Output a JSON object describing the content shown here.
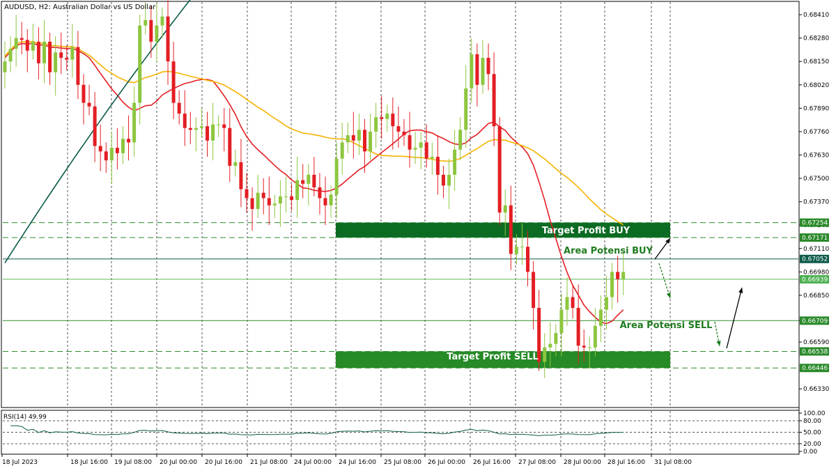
{
  "header": {
    "title": "AUDUSD, H2:  Australian Dollar vs US Dollar"
  },
  "colors": {
    "bull": "#8dc63f",
    "bear": "#e31e24",
    "ma_red": "#e31e24",
    "ma_yellow": "#f5b301",
    "ma_dark": "#0c5a4a",
    "zone_dark": "#0c6b23",
    "zone_mid": "#268a26",
    "level_line": "#2e8b2e",
    "price_tag": "#2a8a2a",
    "grid": "#555555"
  },
  "chart_data": [
    {
      "type": "candlestick",
      "title": "AUDUSD, H2:  Australian Dollar vs US Dollar",
      "ylim": [
        0.6623,
        0.6848
      ],
      "y_ticks": [
        "0.68410",
        "0.68280",
        "0.68150",
        "0.68020",
        "0.67890",
        "0.67760",
        "0.67630",
        "0.67500",
        "0.67370",
        "0.67240",
        "0.67110",
        "0.66980",
        "0.66850",
        "0.66709",
        "0.66590",
        "0.66330"
      ],
      "x_ticks": [
        "18 Jul 2023",
        "18 Jul 16:00",
        "19 Jul 08:00",
        "20 Jul 00:00",
        "20 Jul 16:00",
        "21 Jul 08:00",
        "24 Jul 00:00",
        "24 Jul 16:00",
        "25 Jul 08:00",
        "26 Jul 00:00",
        "26 Jul 16:00",
        "27 Jul 08:00",
        "28 Jul 00:00",
        "28 Jul 16:00",
        "31 Jul 08:00"
      ],
      "y_tick_values": [
        0.6841,
        0.6828,
        0.6815,
        0.6802,
        0.6789,
        0.6776,
        0.6763,
        0.675,
        0.6737,
        0.6724,
        0.6711,
        0.6698,
        0.6685,
        0.66709,
        0.6659,
        0.6633
      ],
      "close": [
        0.6815,
        0.6822,
        0.6828,
        0.6827,
        0.6821,
        0.6826,
        0.6814,
        0.6826,
        0.6809,
        0.682,
        0.6817,
        0.6816,
        0.6823,
        0.6802,
        0.6792,
        0.679,
        0.6768,
        0.6765,
        0.676,
        0.6767,
        0.6764,
        0.6772,
        0.677,
        0.6792,
        0.6835,
        0.6838,
        0.6826,
        0.6835,
        0.684,
        0.6815,
        0.6792,
        0.6786,
        0.6778,
        0.6777,
        0.6778,
        0.6779,
        0.6771,
        0.678,
        0.678,
        0.6778,
        0.6757,
        0.6759,
        0.6744,
        0.6739,
        0.6733,
        0.6742,
        0.6739,
        0.6735,
        0.6736,
        0.674,
        0.674,
        0.6738,
        0.6749,
        0.6747,
        0.6752,
        0.6745,
        0.6739,
        0.6735,
        0.6741,
        0.6761,
        0.677,
        0.6774,
        0.6771,
        0.6777,
        0.6765,
        0.6776,
        0.6784,
        0.6783,
        0.6786,
        0.6779,
        0.6776,
        0.6774,
        0.6766,
        0.6767,
        0.677,
        0.6761,
        0.6762,
        0.6752,
        0.6746,
        0.6752,
        0.6766,
        0.6777,
        0.68,
        0.6819,
        0.6802,
        0.6817,
        0.6808,
        0.6779,
        0.6731,
        0.6735,
        0.6708,
        0.6712,
        0.6712,
        0.6698,
        0.6678,
        0.6648,
        0.6656,
        0.6658,
        0.6664,
        0.6677,
        0.6684,
        0.6678,
        0.6657,
        0.6656,
        0.6656,
        0.6668,
        0.6677,
        0.6684,
        0.6698,
        0.6694,
        0.6698
      ],
      "levels": [
        0.67254,
        0.67171,
        0.67052,
        0.66939,
        0.66709,
        0.66538,
        0.66446
      ],
      "level_labels": [
        "0.67254",
        "0.67171",
        "0.67052",
        "0.66939",
        "0.66709",
        "0.66538",
        "0.66446"
      ],
      "annotations": [
        "Target Profit BUY",
        "Area Potensi BUY",
        "Area Potensi SELL",
        "Target Profit SELL"
      ]
    },
    {
      "type": "line",
      "title": "RSI(14) 49.99",
      "ylim": [
        0,
        100
      ],
      "y_ticks": [
        "100.00",
        "80.00",
        "50.00",
        "20.00",
        "0.00"
      ],
      "y_tick_values": [
        100,
        80,
        50,
        20,
        0
      ]
    }
  ]
}
